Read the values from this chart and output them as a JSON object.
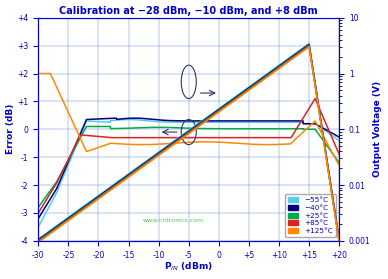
{
  "title": "Calibration at −28 dBm, −10 dBm, and +8 dBm",
  "xlabel": "P$_{IN}$ (dBm)",
  "ylabel_left": "Error (dB)",
  "ylabel_right": "Output Voltage (V)",
  "xlim": [
    -30,
    20
  ],
  "ylim_left": [
    -4,
    4
  ],
  "x_ticks": [
    -30,
    -25,
    -20,
    -15,
    -10,
    -5,
    0,
    5,
    10,
    15,
    20
  ],
  "x_tick_labels": [
    "-30",
    "-25",
    "-20",
    "-15",
    "-10",
    "-5",
    "0",
    "+5",
    "+10",
    "+15",
    "+20"
  ],
  "y_ticks_left": [
    -4,
    -3,
    -2,
    -1,
    0,
    1,
    2,
    3,
    4
  ],
  "y_tick_labels_left": [
    "-4",
    "-3",
    "-2",
    "-1",
    "0",
    "+1",
    "+2",
    "+3",
    "+4"
  ],
  "background_color": "#ffffff",
  "colors": {
    "m55": "#55ccee",
    "m40": "#000080",
    "p25": "#00aa44",
    "p85": "#dd2222",
    "p125": "#ff8800"
  },
  "legend_labels": [
    "−55°C",
    "−40°C",
    "+25°C",
    "+85°C",
    "+125°C"
  ],
  "watermark": "www.cntronics.com"
}
